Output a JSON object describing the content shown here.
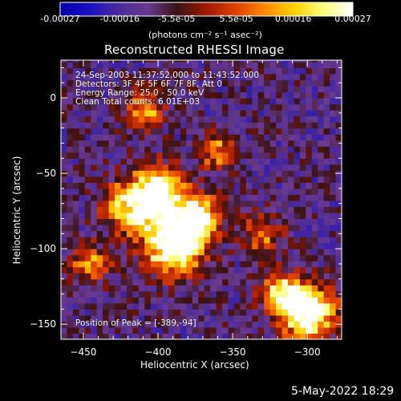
{
  "chart_data": {
    "type": "heatmap",
    "title": "Reconstructed RHESSI Image",
    "xlabel": "Heliocentric X (arcsec)",
    "ylabel": "Heliocentric Y (arcsec)",
    "xlim": [
      -465,
      -277
    ],
    "ylim": [
      -160,
      25
    ],
    "x_ticks": [
      -450,
      -400,
      -350,
      -300
    ],
    "y_ticks": [
      0,
      -50,
      -100,
      -150
    ],
    "colorbar": {
      "range": [
        -0.00027,
        0.00027
      ],
      "tick_values": [
        -0.00027,
        -0.00016,
        -5.5e-05,
        5.5e-05,
        0.00016,
        0.00027
      ],
      "tick_labels": [
        "-0.00027",
        "-0.00016",
        "-5.5e-05",
        "5.5e-05",
        "0.00016",
        "0.00027"
      ],
      "units": "(photons cm⁻² s⁻¹ asec⁻²)"
    },
    "annotations": [
      "24-Sep-2003 11:37:52.000 to 11:43:52.000",
      "Detectors: 3F 4F 5F 6F 7F 8F, Att 0",
      "Energy Range: 25.0 - 50.0 keV",
      "Clean    Total counts: 6.01E+03"
    ],
    "peak_label": "Position of Peak = [-389,-94]",
    "peak": [
      -389,
      -94
    ],
    "sources": [
      {
        "x": -389,
        "y": -94
      },
      {
        "x": -400,
        "y": -62
      },
      {
        "x": -300,
        "y": -142
      }
    ],
    "colormap": [
      "#0000aa",
      "#1a10c0",
      "#4a2a9a",
      "#6a3a90",
      "#3a1212",
      "#a01a00",
      "#e04000",
      "#ff8a00",
      "#ffd000",
      "#ffff80",
      "#ffffff"
    ]
  },
  "footer": {
    "timestamp": "5-May-2022 18:29"
  }
}
